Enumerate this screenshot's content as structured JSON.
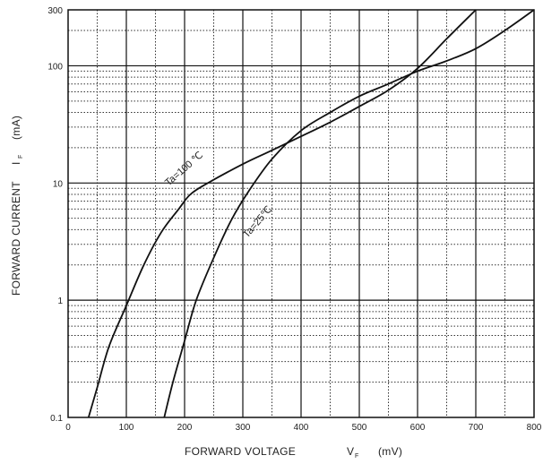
{
  "chart_data": {
    "type": "line",
    "xlabel": {
      "text": "FORWARD VOLTAGE",
      "symbol": "V",
      "subscript": "F",
      "unit": "(mV)"
    },
    "ylabel": {
      "text": "FORWARD CURRENT",
      "symbol": "I",
      "subscript": "F",
      "unit": "(mA)"
    },
    "xlim": [
      0,
      800
    ],
    "ylim": [
      0.1,
      300
    ],
    "yscale": "log",
    "grid": true,
    "x_ticks": [
      "0",
      "100",
      "200",
      "300",
      "400",
      "500",
      "600",
      "700",
      "800"
    ],
    "y_ticks": [
      "0.1",
      "1",
      "10",
      "100",
      "300"
    ],
    "series": [
      {
        "name": "Ta=100 ℃",
        "x": [
          35,
          50,
          70,
          100,
          130,
          160,
          190,
          210,
          240,
          300,
          350,
          400,
          450,
          500,
          550,
          600,
          650,
          700
        ],
        "y": [
          0.1,
          0.18,
          0.4,
          0.9,
          2.0,
          3.8,
          6.0,
          8.0,
          10.0,
          14.5,
          19.0,
          25.0,
          33.0,
          45.0,
          62.0,
          95.0,
          170.0,
          300.0
        ]
      },
      {
        "name": "Ta=25℃",
        "x": [
          165,
          180,
          200,
          220,
          250,
          280,
          310,
          350,
          400,
          450,
          500,
          550,
          600,
          650,
          700,
          750,
          800
        ],
        "y": [
          0.1,
          0.2,
          0.45,
          1.0,
          2.3,
          4.8,
          8.5,
          16.0,
          28.0,
          40.0,
          55.0,
          70.0,
          90.0,
          110.0,
          140.0,
          200.0,
          300.0
        ]
      }
    ]
  }
}
